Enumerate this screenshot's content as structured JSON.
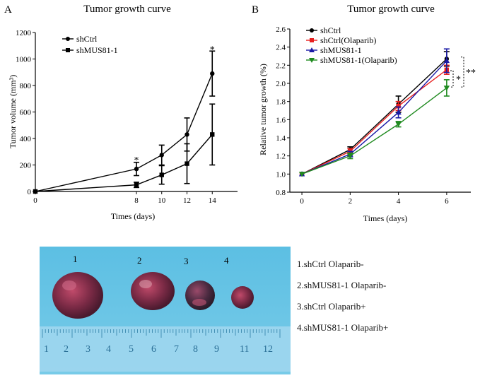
{
  "panelA": {
    "panel_letter": "A",
    "chart_data": {
      "type": "line",
      "title": "Tumor growth curve",
      "xlabel": "Times (days)",
      "ylabel": "Tumor volume (mm³)",
      "xlim": [
        0,
        16
      ],
      "ylim": [
        0,
        1200
      ],
      "x_ticks": [
        0,
        8,
        10,
        12,
        14
      ],
      "y_ticks": [
        0,
        200,
        400,
        600,
        800,
        1000,
        1200
      ],
      "legend": "top-left",
      "series": [
        {
          "name": "shCtrl",
          "marker": "circle",
          "color": "#000000",
          "x": [
            0,
            8,
            10,
            12,
            14
          ],
          "y": [
            0,
            170,
            275,
            430,
            890
          ],
          "err": [
            0,
            50,
            75,
            125,
            170
          ]
        },
        {
          "name": "shMUS81-1",
          "marker": "square",
          "color": "#000000",
          "x": [
            0,
            8,
            10,
            12,
            14
          ],
          "y": [
            0,
            50,
            125,
            210,
            430
          ],
          "err": [
            0,
            20,
            70,
            150,
            230
          ]
        }
      ],
      "annotations": [
        {
          "text": "*",
          "x": 8,
          "y": 235
        },
        {
          "text": "*",
          "x": 14,
          "y": 1070
        }
      ]
    }
  },
  "panelB": {
    "panel_letter": "B",
    "chart_data": {
      "type": "line",
      "title": "Tumor growth curve",
      "xlabel": "Times (days)",
      "ylabel": "Relative tumor growth (%)",
      "xlim": [
        -0.5,
        7
      ],
      "ylim": [
        0.8,
        2.6
      ],
      "x_ticks": [
        0,
        2,
        4,
        6
      ],
      "y_ticks": [
        0.8,
        1.0,
        1.2,
        1.4,
        1.6,
        1.8,
        2.0,
        2.2,
        2.4,
        2.6
      ],
      "legend": "top-left",
      "series": [
        {
          "name": "shCtrl",
          "marker": "circle",
          "color": "#000000",
          "x": [
            0,
            2,
            4,
            6
          ],
          "y": [
            1.0,
            1.27,
            1.77,
            2.27
          ],
          "err": [
            0,
            0.03,
            0.09,
            0.08
          ]
        },
        {
          "name": "shCtrl(Olaparib)",
          "marker": "square",
          "color": "#e8201f",
          "x": [
            0,
            2,
            4,
            6
          ],
          "y": [
            1.0,
            1.25,
            1.75,
            2.15
          ],
          "err": [
            0,
            0.03,
            0.05,
            0.05
          ]
        },
        {
          "name": "shMUS81-1",
          "marker": "triangle-up",
          "color": "#1a1aa6",
          "x": [
            0,
            2,
            4,
            6
          ],
          "y": [
            1.0,
            1.22,
            1.68,
            2.25
          ],
          "err": [
            0,
            0.03,
            0.06,
            0.13
          ]
        },
        {
          "name": "shMUS81-1(Olaparib)",
          "marker": "triangle-down",
          "color": "#1f8a1f",
          "x": [
            0,
            2,
            4,
            6
          ],
          "y": [
            1.0,
            1.2,
            1.55,
            1.95
          ],
          "err": [
            0,
            0.03,
            0.03,
            0.09
          ]
        }
      ],
      "annotations": [
        {
          "text": "*"
        },
        {
          "text": "**"
        }
      ]
    }
  },
  "photo": {
    "numbers": [
      "1",
      "2",
      "3",
      "4"
    ],
    "ruler_numbers": [
      "1",
      "2",
      "3",
      "4",
      "5",
      "6",
      "7",
      "8",
      "9",
      "11",
      "12"
    ],
    "legend_items": [
      "1.shCtrl Olaparib-",
      "2.shMUS81-1 Olaparib-",
      "3.shCtrl Olaparib+",
      "4.shMUS81-1 Olaparib+"
    ],
    "colors": {
      "background": "#6ec5e4",
      "ruler": "#9fd6ee",
      "tumor": "#8a2f4e"
    }
  }
}
